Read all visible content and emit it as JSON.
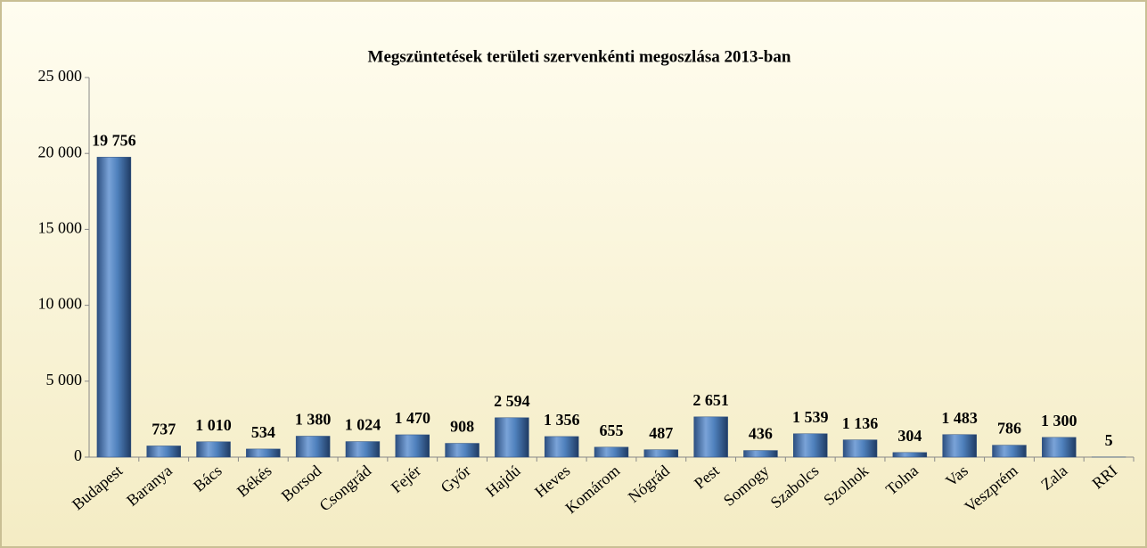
{
  "chart_data": {
    "type": "bar",
    "title": "Megszüntetések területi szervenkénti megoszlása 2013-ban",
    "categories": [
      "Budapest",
      "Baranya",
      "Bács",
      "Békés",
      "Borsod",
      "Csongrád",
      "Fejér",
      "Győr",
      "Hajdú",
      "Heves",
      "Komárom",
      "Nógrád",
      "Pest",
      "Somogy",
      "Szabolcs",
      "Szolnok",
      "Tolna",
      "Vas",
      "Veszprém",
      "Zala",
      "RRI"
    ],
    "values": [
      19756,
      737,
      1010,
      534,
      1380,
      1024,
      1470,
      908,
      2594,
      1356,
      655,
      487,
      2651,
      436,
      1539,
      1136,
      304,
      1483,
      786,
      1300,
      5
    ],
    "value_labels": [
      "19 756",
      "737",
      "1 010",
      "534",
      "1 380",
      "1 024",
      "1 470",
      "908",
      "2 594",
      "1 356",
      "655",
      "487",
      "2 651",
      "436",
      "1 539",
      "1 136",
      "304",
      "1 483",
      "786",
      "1 300",
      "5"
    ],
    "color": "#4f81bd",
    "ylim": [
      0,
      25000
    ],
    "yticks": [
      0,
      {
        "value": 5000,
        "label": "5 000"
      },
      {
        "value": 10000,
        "label": "10 000"
      },
      {
        "value": 15000,
        "label": "15 000"
      },
      {
        "value": 20000,
        "label": "20 000"
      },
      {
        "value": 25000,
        "label": "25 000"
      }
    ]
  }
}
